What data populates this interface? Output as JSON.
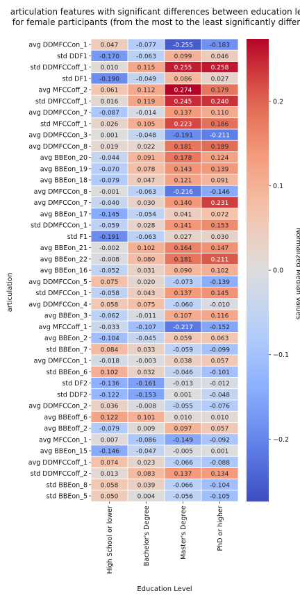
{
  "chart_data": {
    "type": "heatmap",
    "title": "articulation features with significant differences between education le\nfor female participants (from the most to the least significantly differ",
    "xlabel": "Education Level",
    "ylabel": "articulation",
    "colorbar_label": "Normalized Median Values",
    "colormap": "coolwarm",
    "vmin": -0.274,
    "vmax": 0.274,
    "colorbar_ticks": [
      -0.2,
      -0.1,
      0.0,
      0.1,
      0.2
    ],
    "colorbar_tick_labels": [
      "−0.2",
      "−0.1",
      "0.0",
      "0.1",
      "0.2"
    ],
    "columns": [
      "High School or lower",
      "Bachelor's Degree",
      "Master's Degree",
      "PhD or higher"
    ],
    "rows": [
      "avg DDMFCCon_1",
      "std DDF1",
      "std DDMFCCoff_1",
      "std DF1",
      "avg MFCCoff_2",
      "std DMFCCoff_1",
      "avg DDMFCCon_7",
      "std MFCCoff_1",
      "avg DDMFCCon_3",
      "avg DDMFCCon_8",
      "avg BBEon_20",
      "avg BBEon_19",
      "avg BBEon_18",
      "avg DMFCCon_8",
      "avg DMFCCon_7",
      "avg BBEon_17",
      "std DDMFCCon_1",
      "std F1",
      "avg BBEon_21",
      "avg BBEon_22",
      "avg BBEon_16",
      "avg DDMFCCon_5",
      "std DMFCCon_1",
      "avg DDMFCCon_4",
      "avg BBEon_3",
      "avg MFCCoff_1",
      "avg BBEon_2",
      "std BBEon_7",
      "avg DMFCCon_1",
      "std BBEon_6",
      "std DF2",
      "std DDF2",
      "avg DDMFCCon_2",
      "avg BBEoff_6",
      "avg BBEoff_2",
      "avg MFCCon_1",
      "avg BBEon_15",
      "avg DDMFCCoff_1",
      "std DDMFCCoff_2",
      "std BBEon_8",
      "std BBEon_5"
    ],
    "values": [
      [
        0.047,
        -0.077,
        -0.255,
        -0.183
      ],
      [
        -0.17,
        -0.063,
        0.099,
        0.046
      ],
      [
        0.01,
        0.115,
        0.255,
        0.258
      ],
      [
        -0.19,
        -0.049,
        0.086,
        0.027
      ],
      [
        0.061,
        0.112,
        0.274,
        0.179
      ],
      [
        0.016,
        0.119,
        0.245,
        0.24
      ],
      [
        -0.087,
        -0.014,
        0.137,
        0.11
      ],
      [
        0.026,
        0.105,
        0.223,
        0.186
      ],
      [
        0.001,
        -0.048,
        -0.191,
        -0.211
      ],
      [
        0.019,
        0.022,
        0.181,
        0.189
      ],
      [
        -0.044,
        0.091,
        0.178,
        0.124
      ],
      [
        -0.07,
        0.078,
        0.143,
        0.139
      ],
      [
        -0.079,
        0.047,
        0.121,
        0.091
      ],
      [
        -0.001,
        -0.063,
        -0.216,
        -0.146
      ],
      [
        -0.04,
        0.03,
        0.14,
        0.231
      ],
      [
        -0.145,
        -0.054,
        0.041,
        0.072
      ],
      [
        -0.059,
        0.028,
        0.141,
        0.153
      ],
      [
        -0.191,
        -0.063,
        0.027,
        0.03
      ],
      [
        -0.002,
        0.102,
        0.164,
        0.147
      ],
      [
        -0.008,
        0.08,
        0.181,
        0.211
      ],
      [
        -0.052,
        0.031,
        0.09,
        0.102
      ],
      [
        0.075,
        0.02,
        -0.073,
        -0.139
      ],
      [
        -0.058,
        0.043,
        0.137,
        0.145
      ],
      [
        0.058,
        0.075,
        -0.06,
        -0.01
      ],
      [
        -0.062,
        -0.011,
        0.107,
        0.116
      ],
      [
        -0.033,
        -0.107,
        -0.217,
        -0.152
      ],
      [
        -0.104,
        -0.045,
        0.059,
        0.063
      ],
      [
        0.084,
        0.033,
        -0.059,
        -0.099
      ],
      [
        -0.018,
        -0.003,
        0.038,
        0.057
      ],
      [
        0.102,
        0.032,
        -0.046,
        -0.101
      ],
      [
        -0.136,
        -0.161,
        -0.013,
        -0.012
      ],
      [
        -0.122,
        -0.153,
        0.001,
        -0.048
      ],
      [
        0.036,
        -0.008,
        -0.055,
        -0.076
      ],
      [
        0.122,
        0.101,
        0.01,
        0.01
      ],
      [
        -0.079,
        0.009,
        0.097,
        0.057
      ],
      [
        0.007,
        -0.086,
        -0.149,
        -0.092
      ],
      [
        -0.146,
        -0.047,
        -0.005,
        0.001
      ],
      [
        0.074,
        0.023,
        -0.066,
        -0.088
      ],
      [
        0.013,
        0.083,
        0.137,
        0.134
      ],
      [
        0.058,
        0.039,
        -0.066,
        -0.104
      ],
      [
        0.05,
        0.004,
        -0.056,
        -0.105
      ]
    ]
  }
}
